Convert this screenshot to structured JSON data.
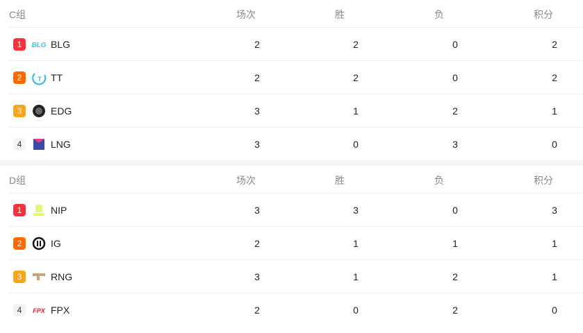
{
  "columns": [
    "场次",
    "胜",
    "负",
    "积分"
  ],
  "rank_colors": {
    "1": "#f5333f",
    "2": "#ff6a00",
    "3": "#f9a41d",
    "4": "#f2f3f5"
  },
  "groups": [
    {
      "name": "C组",
      "teams": [
        {
          "rank": "1",
          "name": "BLG",
          "logo": "blg-logo",
          "played": "2",
          "win": "2",
          "loss": "0",
          "points": "2"
        },
        {
          "rank": "2",
          "name": "TT",
          "logo": "tt-logo",
          "played": "2",
          "win": "2",
          "loss": "0",
          "points": "2"
        },
        {
          "rank": "3",
          "name": "EDG",
          "logo": "edg-logo",
          "played": "3",
          "win": "1",
          "loss": "2",
          "points": "1"
        },
        {
          "rank": "4",
          "name": "LNG",
          "logo": "lng-logo",
          "played": "3",
          "win": "0",
          "loss": "3",
          "points": "0"
        }
      ]
    },
    {
      "name": "D组",
      "teams": [
        {
          "rank": "1",
          "name": "NIP",
          "logo": "nip-logo",
          "played": "3",
          "win": "3",
          "loss": "0",
          "points": "3"
        },
        {
          "rank": "2",
          "name": "IG",
          "logo": "ig-logo",
          "played": "2",
          "win": "1",
          "loss": "1",
          "points": "1"
        },
        {
          "rank": "3",
          "name": "RNG",
          "logo": "rng-logo",
          "played": "3",
          "win": "1",
          "loss": "2",
          "points": "1"
        },
        {
          "rank": "4",
          "name": "FPX",
          "logo": "fpx-logo",
          "played": "2",
          "win": "0",
          "loss": "2",
          "points": "0"
        }
      ]
    }
  ]
}
